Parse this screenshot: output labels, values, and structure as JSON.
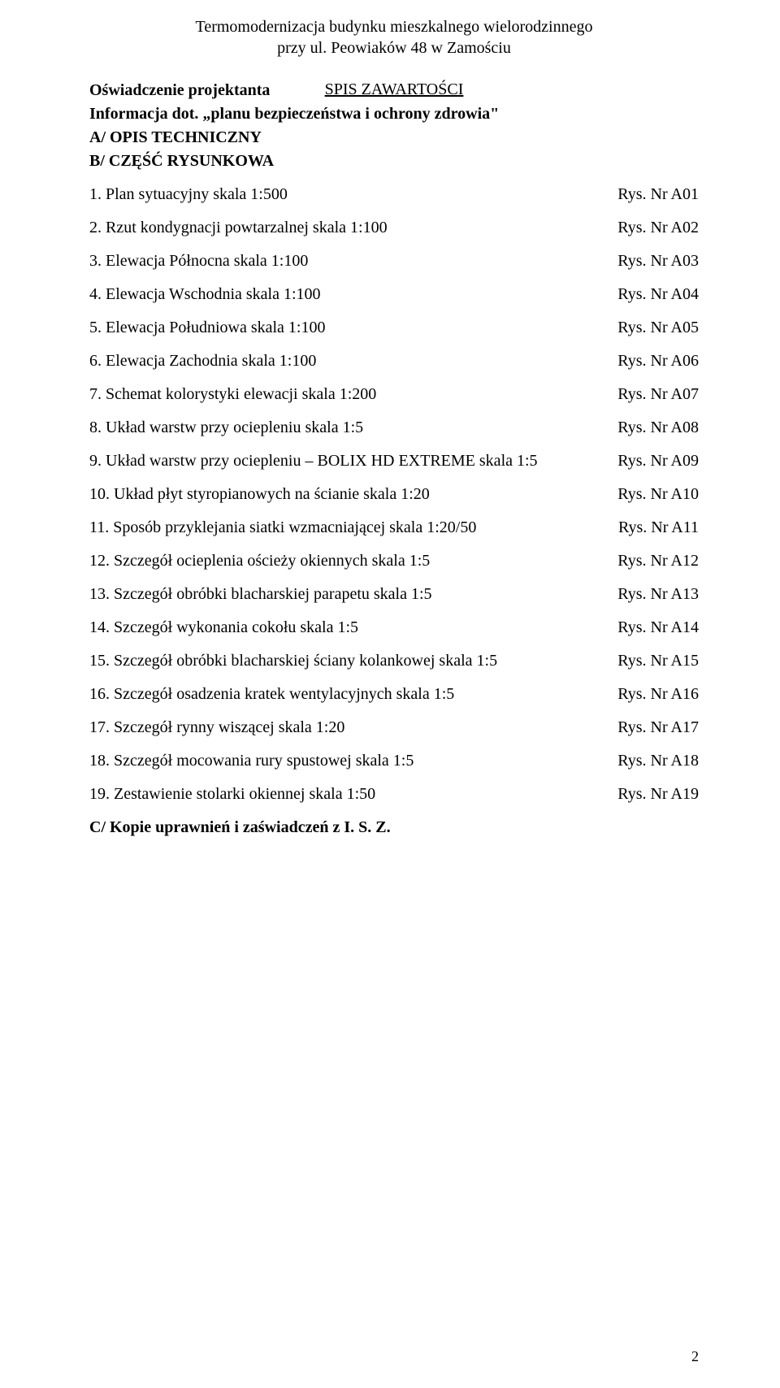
{
  "header": {
    "title_line1": "Termomodernizacja budynku mieszkalnego wielorodzinnego",
    "title_line2": "przy ul. Peowiaków 48 w Zamościu"
  },
  "section_heading": "SPIS ZAWARTOŚCI",
  "intro": {
    "line1": "Oświadczenie projektanta",
    "line2": "Informacja dot. „planu bezpieczeństwa i ochrony zdrowia\"",
    "line3": "A/ OPIS TECHNICZNY",
    "line4": "B/ CZĘŚĆ RYSUNKOWA"
  },
  "items": [
    {
      "label": "1. Plan sytuacyjny skala 1:500",
      "ref": "Rys. Nr A01"
    },
    {
      "label": "2. Rzut kondygnacji powtarzalnej skala 1:100",
      "ref": "Rys. Nr A02"
    },
    {
      "label": "3. Elewacja Północna skala 1:100",
      "ref": "Rys. Nr A03"
    },
    {
      "label": "4. Elewacja Wschodnia skala 1:100",
      "ref": "Rys. Nr A04"
    },
    {
      "label": "5. Elewacja Południowa skala 1:100",
      "ref": "Rys. Nr A05"
    },
    {
      "label": "6. Elewacja Zachodnia skala 1:100",
      "ref": "Rys. Nr A06"
    },
    {
      "label": "7. Schemat kolorystyki elewacji skala 1:200",
      "ref": "Rys. Nr A07"
    },
    {
      "label": "8. Układ warstw przy ociepleniu skala 1:5",
      "ref": "Rys. Nr A08"
    },
    {
      "label": "9. Układ warstw przy ociepleniu – BOLIX HD EXTREME skala 1:5",
      "ref": "Rys. Nr A09"
    },
    {
      "label": "10. Układ płyt styropianowych na ścianie skala 1:20",
      "ref": "Rys. Nr A10"
    },
    {
      "label": "11. Sposób przyklejania siatki wzmacniającej skala 1:20/50",
      "ref": "Rys. Nr A11"
    },
    {
      "label": "12. Szczegół ocieplenia ościeży okiennych skala 1:5",
      "ref": "Rys. Nr A12"
    },
    {
      "label": "13. Szczegół obróbki blacharskiej parapetu skala 1:5",
      "ref": "Rys. Nr A13"
    },
    {
      "label": "14. Szczegół wykonania cokołu skala 1:5",
      "ref": "Rys. Nr A14"
    },
    {
      "label": "15. Szczegół obróbki blacharskiej ściany kolankowej skala 1:5",
      "ref": "Rys. Nr A15"
    },
    {
      "label": "16. Szczegół osadzenia kratek wentylacyjnych skala 1:5",
      "ref": "Rys. Nr A16"
    },
    {
      "label": "17. Szczegół rynny wiszącej skala 1:20",
      "ref": "Rys. Nr A17"
    },
    {
      "label": "18. Szczegół mocowania rury spustowej skala 1:5",
      "ref": "Rys. Nr A18"
    },
    {
      "label": "19. Zestawienie stolarki okiennej skala 1:50",
      "ref": "Rys. Nr A19"
    }
  ],
  "footer_line": "C/ Kopie uprawnień i zaświadczeń z I. S. Z.",
  "page_number": "2"
}
